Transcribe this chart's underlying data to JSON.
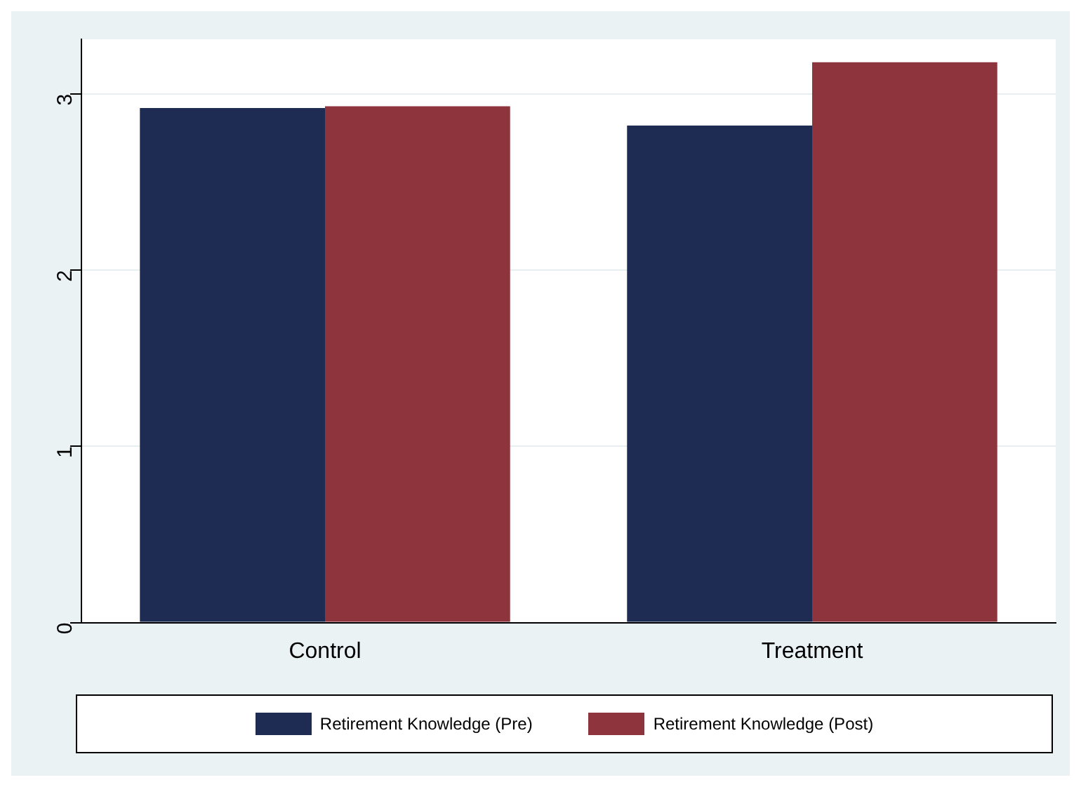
{
  "chart_data": {
    "type": "bar",
    "categories": [
      "Control",
      "Treatment"
    ],
    "series": [
      {
        "name": "Retirement Knowledge (Pre)",
        "color": "#1e2b52",
        "values": [
          2.92,
          2.82
        ]
      },
      {
        "name": "Retirement Knowledge (Post)",
        "color": "#8e343c",
        "values": [
          2.93,
          3.18
        ]
      }
    ],
    "ylim": [
      0,
      3.31
    ],
    "yticks": [
      0,
      1,
      2,
      3
    ],
    "grid": "y",
    "legend": "bottom"
  }
}
